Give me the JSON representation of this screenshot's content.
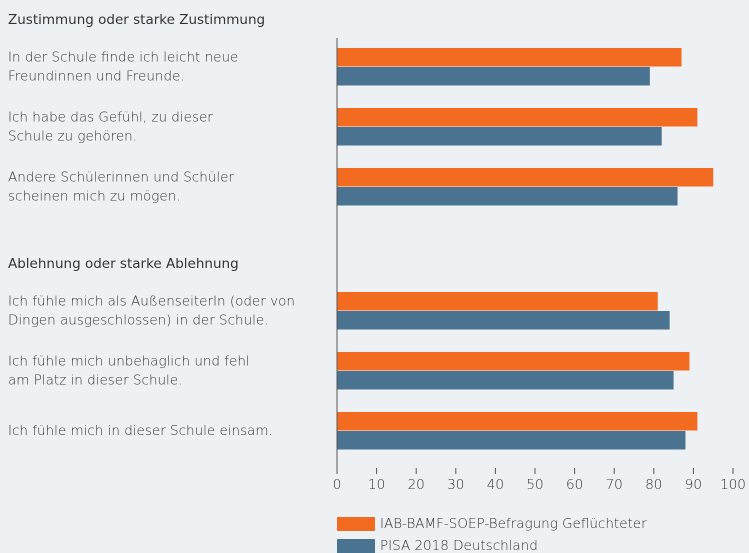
{
  "chart_data": {
    "type": "bar",
    "orientation": "horizontal",
    "group_titles": [
      "Zustimmung oder starke Zustimmung",
      "Ablehnung oder starke Ablehnung"
    ],
    "categories": [
      [
        "In der Schule finde ich leicht neue",
        "Freundinnen und Freunde."
      ],
      [
        "Ich habe das Gefühl, zu dieser",
        "Schule zu gehören."
      ],
      [
        "Andere Schülerinnen und Schüler",
        "scheinen mich zu mögen."
      ],
      [
        "Ich fühle mich als AußenseiterIn (oder von",
        "Dingen ausgeschlossen) in der Schule."
      ],
      [
        "Ich fühle mich unbehaglich und fehl",
        "am Platz in dieser Schule."
      ],
      [
        "Ich fühle mich in dieser Schule einsam."
      ]
    ],
    "series": [
      {
        "name": "IAB-BAMF-SOEP-Befragung Geflüchteter",
        "color": "#f26b21",
        "values": [
          87,
          91,
          95,
          81,
          89,
          91
        ]
      },
      {
        "name": "PISA 2018 Deutschland",
        "color": "#4a7391",
        "values": [
          79,
          82,
          86,
          84,
          85,
          88
        ]
      }
    ],
    "xlim": [
      0,
      100
    ],
    "xticks": [
      0,
      10,
      20,
      30,
      40,
      50,
      60,
      70,
      80,
      90,
      100
    ]
  }
}
